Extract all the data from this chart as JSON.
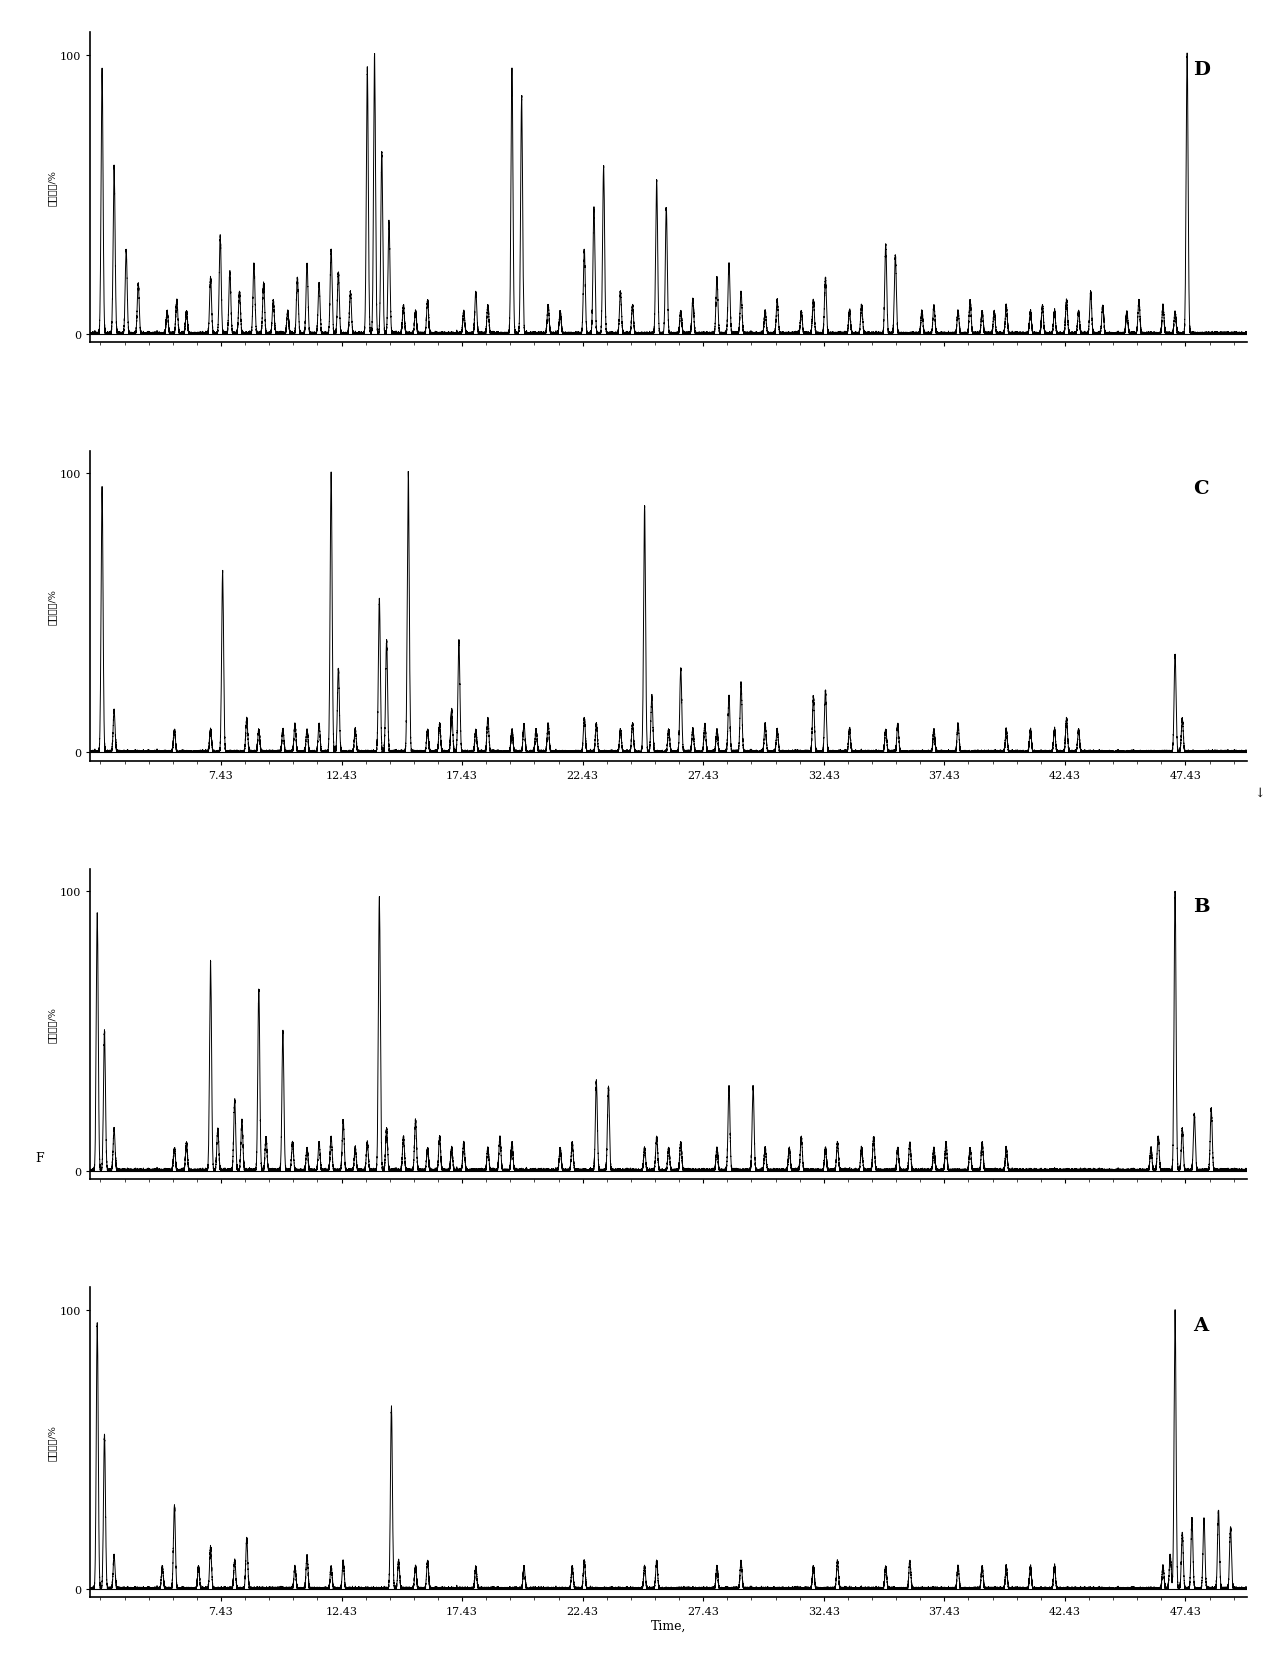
{
  "panels": [
    "D",
    "C",
    "B",
    "A"
  ],
  "x_min": 2.0,
  "x_max": 50.0,
  "x_ticks": [
    7.43,
    12.43,
    17.43,
    22.43,
    27.43,
    32.43,
    37.43,
    42.43,
    47.43
  ],
  "y_ticks": [
    0,
    100
  ],
  "ylabel": "相对强度/%",
  "xlabel_A": "Time,",
  "xlabel_CD": "↓",
  "background_color": "#ffffff",
  "line_color": "#000000",
  "panel_label_fontsize": 14,
  "axis_label_fontsize": 9,
  "tick_fontsize": 8,
  "peaks_D": [
    [
      2.5,
      95
    ],
    [
      3.0,
      60
    ],
    [
      3.5,
      30
    ],
    [
      4.0,
      18
    ],
    [
      5.2,
      8
    ],
    [
      5.6,
      12
    ],
    [
      6.0,
      8
    ],
    [
      7.0,
      20
    ],
    [
      7.4,
      35
    ],
    [
      7.8,
      22
    ],
    [
      8.2,
      15
    ],
    [
      8.8,
      25
    ],
    [
      9.2,
      18
    ],
    [
      9.6,
      12
    ],
    [
      10.2,
      8
    ],
    [
      10.6,
      20
    ],
    [
      11.0,
      25
    ],
    [
      11.5,
      18
    ],
    [
      12.0,
      30
    ],
    [
      12.3,
      22
    ],
    [
      12.8,
      15
    ],
    [
      13.5,
      95
    ],
    [
      13.8,
      100
    ],
    [
      14.1,
      65
    ],
    [
      14.4,
      40
    ],
    [
      15.0,
      10
    ],
    [
      15.5,
      8
    ],
    [
      16.0,
      12
    ],
    [
      17.5,
      8
    ],
    [
      18.0,
      15
    ],
    [
      18.5,
      10
    ],
    [
      19.5,
      95
    ],
    [
      19.9,
      85
    ],
    [
      21.0,
      10
    ],
    [
      21.5,
      8
    ],
    [
      22.5,
      30
    ],
    [
      22.9,
      45
    ],
    [
      23.3,
      60
    ],
    [
      24.0,
      15
    ],
    [
      24.5,
      10
    ],
    [
      25.5,
      55
    ],
    [
      25.9,
      45
    ],
    [
      26.5,
      8
    ],
    [
      27.0,
      12
    ],
    [
      28.0,
      20
    ],
    [
      28.5,
      25
    ],
    [
      29.0,
      15
    ],
    [
      30.0,
      8
    ],
    [
      30.5,
      12
    ],
    [
      31.5,
      8
    ],
    [
      32.0,
      12
    ],
    [
      32.5,
      20
    ],
    [
      33.5,
      8
    ],
    [
      34.0,
      10
    ],
    [
      35.0,
      32
    ],
    [
      35.4,
      28
    ],
    [
      36.5,
      8
    ],
    [
      37.0,
      10
    ],
    [
      38.0,
      8
    ],
    [
      38.5,
      12
    ],
    [
      39.0,
      8
    ],
    [
      39.5,
      8
    ],
    [
      40.0,
      10
    ],
    [
      41.0,
      8
    ],
    [
      41.5,
      10
    ],
    [
      42.0,
      8
    ],
    [
      42.5,
      12
    ],
    [
      43.0,
      8
    ],
    [
      43.5,
      15
    ],
    [
      44.0,
      10
    ],
    [
      45.0,
      8
    ],
    [
      45.5,
      12
    ],
    [
      46.5,
      10
    ],
    [
      47.0,
      8
    ],
    [
      47.5,
      100
    ]
  ],
  "peaks_C": [
    [
      2.5,
      95
    ],
    [
      3.0,
      15
    ],
    [
      5.5,
      8
    ],
    [
      7.0,
      8
    ],
    [
      7.5,
      65
    ],
    [
      8.5,
      12
    ],
    [
      9.0,
      8
    ],
    [
      10.0,
      8
    ],
    [
      10.5,
      10
    ],
    [
      11.0,
      8
    ],
    [
      11.5,
      10
    ],
    [
      12.0,
      100
    ],
    [
      12.3,
      30
    ],
    [
      13.0,
      8
    ],
    [
      14.0,
      55
    ],
    [
      14.3,
      40
    ],
    [
      15.2,
      100
    ],
    [
      16.0,
      8
    ],
    [
      16.5,
      10
    ],
    [
      17.0,
      15
    ],
    [
      17.3,
      40
    ],
    [
      18.0,
      8
    ],
    [
      18.5,
      12
    ],
    [
      19.5,
      8
    ],
    [
      20.0,
      10
    ],
    [
      20.5,
      8
    ],
    [
      21.0,
      10
    ],
    [
      22.5,
      12
    ],
    [
      23.0,
      10
    ],
    [
      24.0,
      8
    ],
    [
      24.5,
      10
    ],
    [
      25.0,
      88
    ],
    [
      25.3,
      20
    ],
    [
      26.0,
      8
    ],
    [
      26.5,
      30
    ],
    [
      27.0,
      8
    ],
    [
      27.5,
      10
    ],
    [
      28.0,
      8
    ],
    [
      28.5,
      20
    ],
    [
      29.0,
      25
    ],
    [
      30.0,
      10
    ],
    [
      30.5,
      8
    ],
    [
      32.0,
      20
    ],
    [
      32.5,
      22
    ],
    [
      33.5,
      8
    ],
    [
      35.0,
      8
    ],
    [
      35.5,
      10
    ],
    [
      37.0,
      8
    ],
    [
      38.0,
      10
    ],
    [
      40.0,
      8
    ],
    [
      41.0,
      8
    ],
    [
      42.0,
      8
    ],
    [
      42.5,
      12
    ],
    [
      43.0,
      8
    ],
    [
      47.0,
      35
    ],
    [
      47.3,
      12
    ]
  ],
  "peaks_B": [
    [
      2.3,
      92
    ],
    [
      2.6,
      50
    ],
    [
      3.0,
      15
    ],
    [
      5.5,
      8
    ],
    [
      6.0,
      10
    ],
    [
      7.0,
      75
    ],
    [
      7.3,
      15
    ],
    [
      8.0,
      25
    ],
    [
      8.3,
      18
    ],
    [
      9.0,
      65
    ],
    [
      9.3,
      12
    ],
    [
      10.0,
      50
    ],
    [
      10.4,
      10
    ],
    [
      11.0,
      8
    ],
    [
      11.5,
      10
    ],
    [
      12.0,
      12
    ],
    [
      12.5,
      18
    ],
    [
      13.0,
      8
    ],
    [
      13.5,
      10
    ],
    [
      14.0,
      98
    ],
    [
      14.3,
      15
    ],
    [
      15.0,
      12
    ],
    [
      15.5,
      18
    ],
    [
      16.0,
      8
    ],
    [
      16.5,
      12
    ],
    [
      17.0,
      8
    ],
    [
      17.5,
      10
    ],
    [
      18.5,
      8
    ],
    [
      19.0,
      12
    ],
    [
      19.5,
      10
    ],
    [
      21.5,
      8
    ],
    [
      22.0,
      10
    ],
    [
      23.0,
      32
    ],
    [
      23.5,
      30
    ],
    [
      25.0,
      8
    ],
    [
      25.5,
      12
    ],
    [
      26.0,
      8
    ],
    [
      26.5,
      10
    ],
    [
      28.0,
      8
    ],
    [
      28.5,
      30
    ],
    [
      29.5,
      30
    ],
    [
      30.0,
      8
    ],
    [
      31.0,
      8
    ],
    [
      31.5,
      12
    ],
    [
      32.5,
      8
    ],
    [
      33.0,
      10
    ],
    [
      34.0,
      8
    ],
    [
      34.5,
      12
    ],
    [
      35.5,
      8
    ],
    [
      36.0,
      10
    ],
    [
      37.0,
      8
    ],
    [
      37.5,
      10
    ],
    [
      38.5,
      8
    ],
    [
      39.0,
      10
    ],
    [
      40.0,
      8
    ],
    [
      46.0,
      8
    ],
    [
      46.3,
      12
    ],
    [
      47.0,
      100
    ],
    [
      47.3,
      15
    ],
    [
      47.8,
      20
    ],
    [
      48.5,
      22
    ]
  ],
  "peaks_A": [
    [
      2.3,
      95
    ],
    [
      2.6,
      55
    ],
    [
      3.0,
      12
    ],
    [
      5.0,
      8
    ],
    [
      5.5,
      30
    ],
    [
      6.5,
      8
    ],
    [
      7.0,
      15
    ],
    [
      8.0,
      10
    ],
    [
      8.5,
      18
    ],
    [
      10.5,
      8
    ],
    [
      11.0,
      12
    ],
    [
      12.0,
      8
    ],
    [
      12.5,
      10
    ],
    [
      14.5,
      65
    ],
    [
      14.8,
      10
    ],
    [
      15.5,
      8
    ],
    [
      16.0,
      10
    ],
    [
      18.0,
      8
    ],
    [
      20.0,
      8
    ],
    [
      22.0,
      8
    ],
    [
      22.5,
      10
    ],
    [
      25.0,
      8
    ],
    [
      25.5,
      10
    ],
    [
      28.0,
      8
    ],
    [
      29.0,
      10
    ],
    [
      32.0,
      8
    ],
    [
      33.0,
      10
    ],
    [
      35.0,
      8
    ],
    [
      36.0,
      10
    ],
    [
      38.0,
      8
    ],
    [
      39.0,
      8
    ],
    [
      40.0,
      8
    ],
    [
      41.0,
      8
    ],
    [
      42.0,
      8
    ],
    [
      46.5,
      8
    ],
    [
      46.8,
      12
    ],
    [
      47.0,
      100
    ],
    [
      47.3,
      20
    ],
    [
      47.7,
      25
    ],
    [
      48.2,
      25
    ],
    [
      48.8,
      28
    ],
    [
      49.3,
      22
    ]
  ]
}
